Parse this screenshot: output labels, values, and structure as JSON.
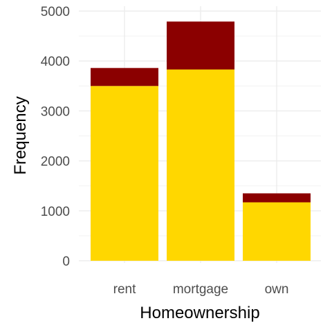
{
  "chart_data": {
    "type": "bar",
    "stacked": true,
    "xlabel": "Homeownership",
    "ylabel": "Frequency",
    "categories": [
      "rent",
      "mortgage",
      "own"
    ],
    "series": [
      {
        "color": "#FFD700",
        "values": [
          3500,
          3830,
          1170
        ]
      },
      {
        "color": "#8B0000",
        "values": [
          360,
          960,
          180
        ]
      }
    ],
    "ylim": [
      0,
      5000
    ],
    "yticks": [
      0,
      1000,
      2000,
      3000,
      4000,
      5000
    ],
    "ytick_labels": [
      "0",
      "1000",
      "2000",
      "3000",
      "4000",
      "5000"
    ],
    "grid": true,
    "legend": "none"
  }
}
